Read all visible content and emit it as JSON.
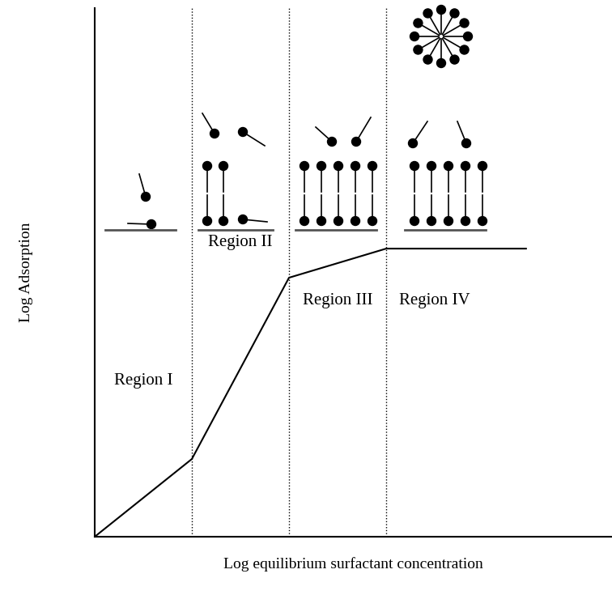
{
  "chart_data": {
    "type": "line",
    "x_label": "Log equilibrium surfactant concentration",
    "y_label": "Log Adsorption",
    "x": [
      0,
      1,
      2,
      3,
      4.44
    ],
    "values": [
      0,
      1.47,
      4.9,
      5.45,
      5.45
    ],
    "color": "#000000",
    "xlim": [
      0,
      5.325
    ],
    "ylim": [
      0,
      10
    ],
    "xticks": [],
    "yticks": [],
    "tick_labels": false,
    "region_boundaries": [
      1,
      2,
      3
    ],
    "annotations": [
      "Region I",
      "Region II",
      "Region III",
      "Region IV"
    ]
  }
}
